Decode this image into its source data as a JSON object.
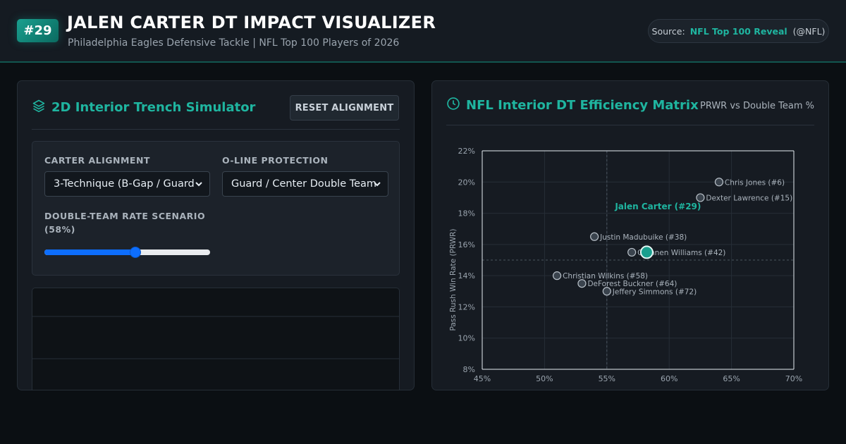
{
  "header": {
    "rank": "#29",
    "title": "JALEN CARTER DT IMPACT VISUALIZER",
    "subtitle": "Philadelphia Eagles Defensive Tackle | NFL Top 100 Players of 2026",
    "source_label": "Source:",
    "source_link": "NFL Top 100 Reveal",
    "source_handle": "(@NFL)"
  },
  "simulator": {
    "title": "2D Interior Trench Simulator",
    "icon": "layers-icon",
    "reset_label": "RESET ALIGNMENT",
    "alignment_label": "CARTER ALIGNMENT",
    "alignment_value": "3-Technique (B-Gap / Guard",
    "protection_label": "O-LINE PROTECTION",
    "protection_value": "Guard / Center Double Team",
    "double_team_label": "DOUBLE-TEAM RATE SCENARIO",
    "double_team_value": "(58%)",
    "slider_fraction": 0.55
  },
  "matrix": {
    "title": "NFL Interior DT Efficiency Matrix",
    "icon": "clock-icon",
    "subtitle": "PRWR vs Double Team %"
  },
  "colors": {
    "accent": "#1fb5a0",
    "background": "#0b0f13",
    "panel": "#161b22",
    "slider": "#0d6efd"
  },
  "chart_data": {
    "type": "scatter",
    "xlabel": "",
    "ylabel": "Pass Rush Win Rate (PRWR)",
    "xlim": [
      45,
      70
    ],
    "ylim": [
      8,
      22
    ],
    "x_ticks": [
      "45%",
      "50%",
      "55%",
      "60%",
      "65%",
      "70%"
    ],
    "y_ticks": [
      "22%",
      "20%",
      "18%",
      "16%",
      "14%",
      "12%",
      "10%",
      "8%"
    ],
    "x_tick_values": [
      45,
      50,
      55,
      60,
      65,
      70
    ],
    "y_tick_values": [
      22,
      20,
      18,
      16,
      14,
      12,
      10,
      8
    ],
    "reference_lines": {
      "x": 55,
      "y": 15
    },
    "grid": true,
    "points": [
      {
        "label": "Chris Jones (#6)",
        "x": 64,
        "y": 20,
        "highlight": false
      },
      {
        "label": "Dexter Lawrence (#15)",
        "x": 62.5,
        "y": 19,
        "highlight": false
      },
      {
        "label": "Justin Madubuike (#38)",
        "x": 54,
        "y": 16.5,
        "highlight": false
      },
      {
        "label": "Quinnen Williams (#42)",
        "x": 57,
        "y": 15.5,
        "highlight": false
      },
      {
        "label": "Christian Wilkins (#58)",
        "x": 51,
        "y": 14,
        "highlight": false
      },
      {
        "label": "DeForest Buckner (#64)",
        "x": 53,
        "y": 13.5,
        "highlight": false
      },
      {
        "label": "Jeffery Simmons (#72)",
        "x": 55,
        "y": 13,
        "highlight": false
      },
      {
        "label": "Jalen Carter (#29)",
        "x": 58.2,
        "y": 15.5,
        "highlight": true
      }
    ]
  }
}
